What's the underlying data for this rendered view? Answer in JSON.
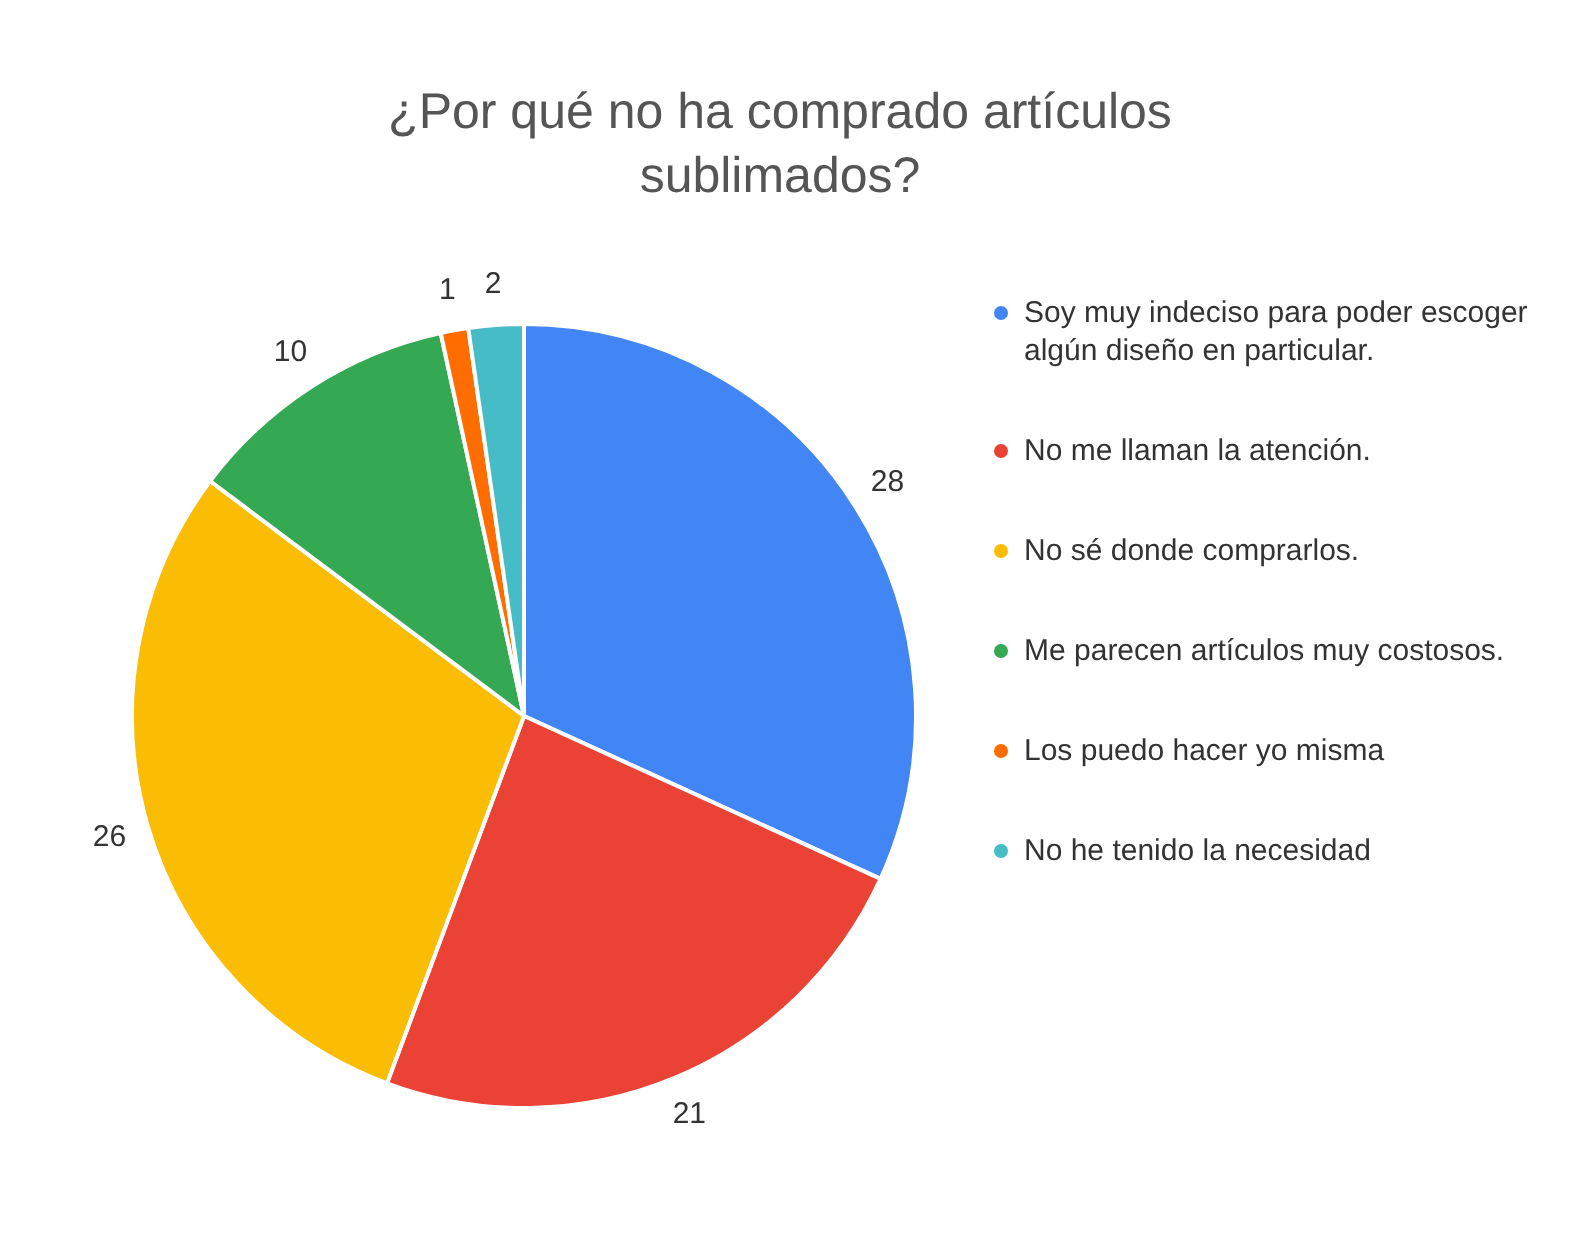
{
  "chart_data": {
    "type": "pie",
    "title": "¿Por qué no ha comprado artículos sublimados?",
    "categories": [
      "Soy muy indeciso para poder escoger algún diseño en particular.",
      "No me llaman la atención.",
      "No sé donde comprarlos.",
      "Me parecen artículos muy costosos.",
      "Los puedo hacer yo misma",
      "No he tenido la necesidad"
    ],
    "values": [
      28,
      21,
      26,
      10,
      1,
      2
    ],
    "colors": [
      "#4285f4",
      "#ea4335",
      "#fbbc04",
      "#34a853",
      "#ff6d01",
      "#46bdc6"
    ],
    "data_labels": true,
    "legend": "right"
  }
}
